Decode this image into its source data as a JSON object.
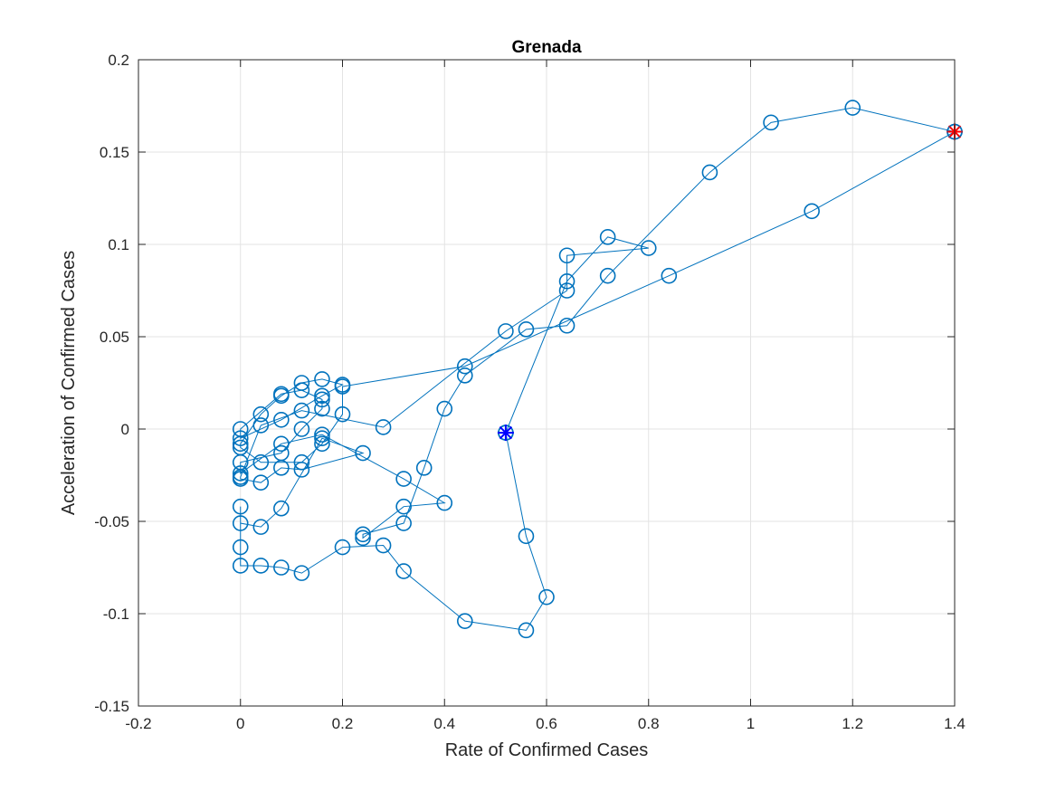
{
  "chart_data": {
    "type": "line",
    "title": "Grenada",
    "xlabel": "Rate of Confirmed Cases",
    "ylabel": "Acceleration of Confirmed Cases",
    "xlim": [
      -0.2,
      1.4
    ],
    "ylim": [
      -0.15,
      0.2
    ],
    "xticks": [
      -0.2,
      0,
      0.2,
      0.4,
      0.6,
      0.8,
      1,
      1.2,
      1.4
    ],
    "yticks": [
      -0.15,
      -0.1,
      -0.05,
      0,
      0.05,
      0.1,
      0.15,
      0.2
    ],
    "xtick_labels": [
      "-0.2",
      "0",
      "0.2",
      "0.4",
      "0.6",
      "0.8",
      "1",
      "1.2",
      "1.4"
    ],
    "ytick_labels": [
      "-0.15",
      "-0.1",
      "-0.05",
      "0",
      "0.05",
      "0.1",
      "0.15",
      "0.2"
    ],
    "grid": true,
    "series": [
      {
        "marker": "circle",
        "color": "#0072BD",
        "points": [
          [
            1.4,
            0.161
          ],
          [
            1.2,
            0.174
          ],
          [
            1.04,
            0.166
          ],
          [
            0.92,
            0.139
          ],
          [
            0.72,
            0.083
          ],
          [
            0.64,
            0.056
          ],
          [
            0.56,
            0.054
          ],
          [
            0.44,
            0.029
          ],
          [
            0.4,
            0.011
          ],
          [
            0.36,
            -0.021
          ],
          [
            0.32,
            -0.051
          ],
          [
            0.24,
            -0.057
          ],
          [
            0.24,
            -0.059
          ],
          [
            0.32,
            -0.042
          ],
          [
            0.4,
            -0.04
          ],
          [
            0.32,
            -0.027
          ],
          [
            0.16,
            -0.003
          ],
          [
            0.08,
            -0.008
          ],
          [
            0,
            -0.024
          ],
          [
            0,
            -0.018
          ],
          [
            0.08,
            -0.013
          ],
          [
            0.12,
            0
          ],
          [
            0.16,
            0.011
          ],
          [
            0.16,
            0.016
          ],
          [
            0.12,
            0.021
          ],
          [
            0.08,
            0.019
          ],
          [
            0,
            0
          ],
          [
            0,
            -0.005
          ],
          [
            0.08,
            0.005
          ],
          [
            0.16,
            0.018
          ],
          [
            0.2,
            0.024
          ],
          [
            0.16,
            0.027
          ],
          [
            0.12,
            0.025
          ],
          [
            0.08,
            0.018
          ],
          [
            0.04,
            0.008
          ],
          [
            0,
            -0.008
          ],
          [
            0,
            -0.01
          ],
          [
            0.04,
            -0.018
          ],
          [
            0.12,
            -0.018
          ],
          [
            0.16,
            -0.008
          ],
          [
            0.2,
            0.008
          ],
          [
            0.2,
            0.023
          ],
          [
            0.44,
            0.034
          ],
          [
            0.84,
            0.083
          ],
          [
            1.12,
            0.118
          ],
          [
            1.4,
            0.161
          ]
        ]
      },
      {
        "marker": "circle",
        "color": "#0072BD",
        "points": [
          [
            0.52,
            -0.002
          ],
          [
            0.64,
            0.08
          ],
          [
            0.72,
            0.104
          ],
          [
            0.8,
            0.098
          ],
          [
            0.64,
            0.094
          ],
          [
            0.64,
            0.075
          ],
          [
            0.52,
            0.053
          ],
          [
            0.28,
            0.001
          ],
          [
            0.12,
            0.01
          ],
          [
            0.04,
            0.002
          ],
          [
            0,
            -0.026
          ],
          [
            0,
            -0.027
          ],
          [
            0.04,
            -0.029
          ],
          [
            0.08,
            -0.021
          ],
          [
            0.12,
            -0.022
          ],
          [
            0.24,
            -0.013
          ],
          [
            0.16,
            -0.005
          ],
          [
            0.08,
            -0.043
          ],
          [
            0.04,
            -0.053
          ],
          [
            0,
            -0.051
          ],
          [
            0,
            -0.042
          ],
          [
            0,
            -0.064
          ],
          [
            0,
            -0.074
          ],
          [
            0.04,
            -0.074
          ],
          [
            0.08,
            -0.075
          ],
          [
            0.12,
            -0.078
          ],
          [
            0.2,
            -0.064
          ],
          [
            0.28,
            -0.063
          ],
          [
            0.32,
            -0.077
          ],
          [
            0.44,
            -0.104
          ],
          [
            0.56,
            -0.109
          ],
          [
            0.6,
            -0.091
          ],
          [
            0.56,
            -0.058
          ],
          [
            0.52,
            -0.002
          ]
        ]
      }
    ],
    "start_marker": {
      "x": 0.52,
      "y": -0.002,
      "marker": "asterisk",
      "color": "#0000FF"
    },
    "end_marker": {
      "x": 1.4,
      "y": 0.161,
      "marker": "asterisk+circle",
      "color": "#FF0000"
    }
  }
}
